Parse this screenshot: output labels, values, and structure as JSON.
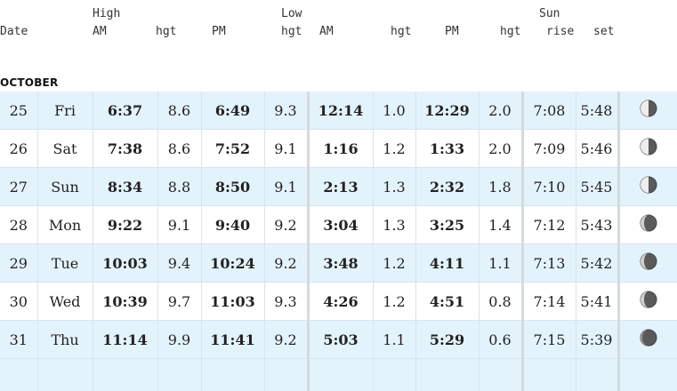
{
  "header": {
    "date": "Date",
    "high": "High",
    "high_am": "AM",
    "high_am_hgt": "hgt",
    "high_pm": "PM",
    "low": "Low",
    "high_pm_hgt": "hgt",
    "low_am": "AM",
    "low_am_hgt": "hgt",
    "low_pm": "PM",
    "low_pm_hgt": "hgt",
    "sun": "Sun",
    "sun_rise": "rise",
    "sun_set": "set"
  },
  "month": "OCTOBER",
  "rows": [
    {
      "date": "25",
      "day": "Fri",
      "high_am": "6:37",
      "high_am_hgt": "8.6",
      "high_pm": "6:49",
      "high_pm_hgt": "9.3",
      "low_am": "12:14",
      "low_am_hgt": "1.0",
      "low_pm": "12:29",
      "low_pm_hgt": "2.0",
      "sunrise": "7:08",
      "sunset": "5:48",
      "moon_icon": "waning-half-moon-icon"
    },
    {
      "date": "26",
      "day": "Sat",
      "high_am": "7:38",
      "high_am_hgt": "8.6",
      "high_pm": "7:52",
      "high_pm_hgt": "9.1",
      "low_am": "1:16",
      "low_am_hgt": "1.2",
      "low_pm": "1:33",
      "low_pm_hgt": "2.0",
      "sunrise": "7:09",
      "sunset": "5:46",
      "moon_icon": "waning-half-moon-icon"
    },
    {
      "date": "27",
      "day": "Sun",
      "high_am": "8:34",
      "high_am_hgt": "8.8",
      "high_pm": "8:50",
      "high_pm_hgt": "9.1",
      "low_am": "2:13",
      "low_am_hgt": "1.3",
      "low_pm": "2:32",
      "low_pm_hgt": "1.8",
      "sunrise": "7:10",
      "sunset": "5:45",
      "moon_icon": "waning-half-moon-icon"
    },
    {
      "date": "28",
      "day": "Mon",
      "high_am": "9:22",
      "high_am_hgt": "9.1",
      "high_pm": "9:40",
      "high_pm_hgt": "9.2",
      "low_am": "3:04",
      "low_am_hgt": "1.3",
      "low_pm": "3:25",
      "low_pm_hgt": "1.4",
      "sunrise": "7:12",
      "sunset": "5:43",
      "moon_icon": "waning-crescent-moon-icon"
    },
    {
      "date": "29",
      "day": "Tue",
      "high_am": "10:03",
      "high_am_hgt": "9.4",
      "high_pm": "10:24",
      "high_pm_hgt": "9.2",
      "low_am": "3:48",
      "low_am_hgt": "1.2",
      "low_pm": "4:11",
      "low_pm_hgt": "1.1",
      "sunrise": "7:13",
      "sunset": "5:42",
      "moon_icon": "waning-crescent-moon-icon"
    },
    {
      "date": "30",
      "day": "Wed",
      "high_am": "10:39",
      "high_am_hgt": "9.7",
      "high_pm": "11:03",
      "high_pm_hgt": "9.3",
      "low_am": "4:26",
      "low_am_hgt": "1.2",
      "low_pm": "4:51",
      "low_pm_hgt": "0.8",
      "sunrise": "7:14",
      "sunset": "5:41",
      "moon_icon": "waning-crescent-moon-icon"
    },
    {
      "date": "31",
      "day": "Thu",
      "high_am": "11:14",
      "high_am_hgt": "9.9",
      "high_pm": "11:41",
      "high_pm_hgt": "9.2",
      "low_am": "5:03",
      "low_am_hgt": "1.1",
      "low_pm": "5:29",
      "low_pm_hgt": "0.6",
      "sunrise": "7:15",
      "sunset": "5:39",
      "moon_icon": "new-moon-icon"
    }
  ]
}
